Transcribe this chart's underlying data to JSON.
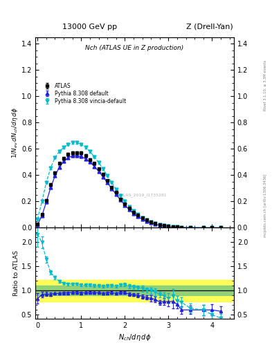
{
  "title_top": "13000 GeV pp",
  "title_right": "Z (Drell-Yan)",
  "plot_title": "Nch (ATLAS UE in Z production)",
  "ylabel_main": "1/N_{ev} dN_{ch}/d\\eta d\\phi",
  "ylabel_ratio": "Ratio to ATLAS",
  "xlabel": "N_{ch}/d\\eta d\\phi",
  "watermark": "ATLAS_2019_I1735281",
  "rivet_label": "Rivet 3.1.10, ≥ 3.3M events",
  "mcplots_label": "mcplots.cern.ch [arXiv:1306.3436]",
  "atlas_x": [
    0.0,
    0.1,
    0.2,
    0.3,
    0.4,
    0.5,
    0.6,
    0.7,
    0.8,
    0.9,
    1.0,
    1.1,
    1.2,
    1.3,
    1.4,
    1.5,
    1.6,
    1.7,
    1.8,
    1.9,
    2.0,
    2.1,
    2.2,
    2.3,
    2.4,
    2.5,
    2.6,
    2.7,
    2.8,
    2.9,
    3.0,
    3.1,
    3.2,
    3.3,
    3.5,
    3.8,
    4.0,
    4.2
  ],
  "atlas_y": [
    0.03,
    0.1,
    0.21,
    0.33,
    0.42,
    0.49,
    0.53,
    0.56,
    0.57,
    0.57,
    0.57,
    0.55,
    0.52,
    0.49,
    0.45,
    0.41,
    0.36,
    0.31,
    0.27,
    0.22,
    0.18,
    0.15,
    0.12,
    0.095,
    0.075,
    0.058,
    0.044,
    0.033,
    0.025,
    0.018,
    0.013,
    0.009,
    0.007,
    0.005,
    0.003,
    0.0015,
    0.001,
    0.0007
  ],
  "atlas_yerr": [
    0.003,
    0.005,
    0.007,
    0.008,
    0.009,
    0.009,
    0.009,
    0.009,
    0.009,
    0.009,
    0.009,
    0.008,
    0.008,
    0.008,
    0.007,
    0.007,
    0.006,
    0.006,
    0.005,
    0.005,
    0.004,
    0.004,
    0.003,
    0.003,
    0.003,
    0.002,
    0.002,
    0.002,
    0.001,
    0.001,
    0.001,
    0.001,
    0.0005,
    0.0004,
    0.0003,
    0.0002,
    0.0001,
    0.0001
  ],
  "py8_x": [
    0.0,
    0.1,
    0.2,
    0.3,
    0.4,
    0.5,
    0.6,
    0.7,
    0.8,
    0.9,
    1.0,
    1.1,
    1.2,
    1.3,
    1.4,
    1.5,
    1.6,
    1.7,
    1.8,
    1.9,
    2.0,
    2.1,
    2.2,
    2.3,
    2.4,
    2.5,
    2.6,
    2.7,
    2.8,
    2.9,
    3.0,
    3.1,
    3.2,
    3.3,
    3.5,
    3.8,
    4.0,
    4.2
  ],
  "py8_y": [
    0.025,
    0.092,
    0.195,
    0.305,
    0.395,
    0.462,
    0.505,
    0.533,
    0.547,
    0.548,
    0.542,
    0.525,
    0.5,
    0.468,
    0.43,
    0.388,
    0.343,
    0.298,
    0.254,
    0.212,
    0.173,
    0.139,
    0.11,
    0.086,
    0.066,
    0.05,
    0.037,
    0.027,
    0.019,
    0.014,
    0.01,
    0.007,
    0.005,
    0.003,
    0.0018,
    0.0009,
    0.0006,
    0.0004
  ],
  "py8_yerr": [
    0.002,
    0.004,
    0.006,
    0.007,
    0.008,
    0.008,
    0.009,
    0.009,
    0.009,
    0.009,
    0.009,
    0.008,
    0.008,
    0.007,
    0.007,
    0.006,
    0.006,
    0.005,
    0.005,
    0.004,
    0.004,
    0.003,
    0.003,
    0.003,
    0.002,
    0.002,
    0.002,
    0.001,
    0.001,
    0.001,
    0.001,
    0.001,
    0.0005,
    0.0003,
    0.0002,
    0.0001,
    0.0001,
    5e-05
  ],
  "vincia_x": [
    0.0,
    0.1,
    0.2,
    0.3,
    0.4,
    0.5,
    0.6,
    0.7,
    0.8,
    0.9,
    1.0,
    1.1,
    1.2,
    1.3,
    1.4,
    1.5,
    1.6,
    1.7,
    1.8,
    1.9,
    2.0,
    2.1,
    2.2,
    2.3,
    2.4,
    2.5,
    2.6,
    2.7,
    2.8,
    2.9,
    3.0,
    3.1,
    3.2,
    3.3,
    3.5,
    3.8,
    4.0,
    4.2
  ],
  "vincia_y": [
    0.065,
    0.2,
    0.345,
    0.455,
    0.535,
    0.582,
    0.611,
    0.635,
    0.648,
    0.648,
    0.635,
    0.612,
    0.58,
    0.541,
    0.496,
    0.447,
    0.396,
    0.344,
    0.294,
    0.246,
    0.202,
    0.163,
    0.129,
    0.101,
    0.078,
    0.059,
    0.044,
    0.032,
    0.023,
    0.016,
    0.011,
    0.008,
    0.0055,
    0.0038,
    0.0019,
    0.0009,
    0.0005,
    0.0003
  ],
  "vincia_yerr": [
    0.004,
    0.006,
    0.008,
    0.009,
    0.009,
    0.009,
    0.009,
    0.009,
    0.009,
    0.009,
    0.009,
    0.009,
    0.008,
    0.008,
    0.007,
    0.007,
    0.006,
    0.006,
    0.005,
    0.005,
    0.004,
    0.004,
    0.003,
    0.003,
    0.003,
    0.002,
    0.002,
    0.002,
    0.001,
    0.001,
    0.001,
    0.001,
    0.0006,
    0.0004,
    0.0002,
    0.0001,
    7e-05,
    5e-05
  ],
  "atlas_color": "black",
  "py8_color": "#2020dd",
  "vincia_color": "#00bbcc",
  "ylim_main": [
    0.0,
    1.45
  ],
  "ylim_ratio": [
    0.42,
    2.3
  ],
  "xlim": [
    -0.05,
    4.5
  ],
  "green_band": [
    0.9,
    1.1
  ],
  "yellow_band": [
    0.78,
    1.22
  ]
}
